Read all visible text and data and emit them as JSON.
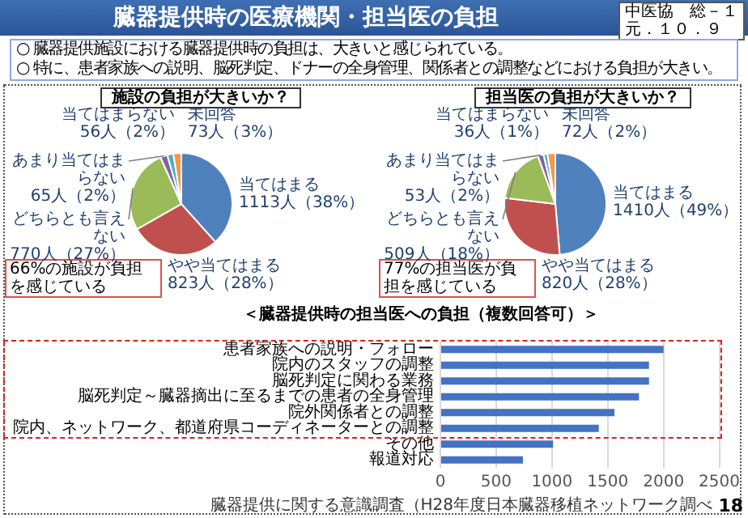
{
  "chart_data": [
    {
      "type": "other",
      "title": "臓器提供時の医療機関・担当医の負担",
      "annotations": [
        "中医協　総－１",
        "元．１０．９",
        "○ 臓器提供施設における臓器提供時の負担は、大きいと感じられている。",
        "○ 特に、患者家族への説明、脳死判定、ドナーの全身管理、関係者との調整などにおける負担が大きい。"
      ]
    },
    {
      "type": "pie",
      "title": "施設の負担が大きいか？",
      "categories": [
        "当てはまる",
        "やや当てはまる",
        "どちらとも言えない",
        "あまり当てはまらない",
        "当てはまらない",
        "未回答"
      ],
      "values": [
        1113,
        823,
        770,
        65,
        56,
        73
      ],
      "colors": [
        "#4f81bd",
        "#c0504d",
        "#9bbb59",
        "#8064a2",
        "#4bacc6",
        "#f79646"
      ],
      "value_labels": [
        "1113人（38%）",
        "823人（28%）",
        "770人（27%）",
        "65人（2%）",
        "56人（2%）",
        "73人（3%）"
      ],
      "annotations": [
        "66%の施設が負担を感じている"
      ]
    },
    {
      "type": "pie",
      "title": "担当医の負担が大きいか？",
      "categories": [
        "当てはまる",
        "やや当てはまる",
        "どちらとも言えない",
        "あまり当てはまらない",
        "当てはまらない",
        "未回答"
      ],
      "values": [
        1410,
        820,
        509,
        53,
        36,
        72
      ],
      "colors": [
        "#4f81bd",
        "#c0504d",
        "#9bbb59",
        "#8064a2",
        "#4bacc6",
        "#f79646"
      ],
      "value_labels": [
        "1410人（49%）",
        "820人（28%）",
        "509人（18%）",
        "53人（2%）",
        "36人（1%）",
        "72人（2%）"
      ],
      "annotations": [
        "77%の担当医が負担を感じている"
      ]
    },
    {
      "type": "bar",
      "orientation": "horizontal",
      "title": "＜臓器提供時の担当医への負担（複数回答可）＞",
      "categories": [
        "患者家族への説明・フォロー",
        "院内のスタッフの調整",
        "脳死判定に関わる業務",
        "脳死判定～臓器摘出に至るまでの患者の全身管理",
        "院外関係者との調整",
        "院内、ネットワーク、都道府県コーディネーターとの調整",
        "その他",
        "報道対応"
      ],
      "values": [
        2000,
        1870,
        1870,
        1780,
        1560,
        1420,
        1010,
        740
      ],
      "color": "#4472c4",
      "xlim": [
        0,
        2500
      ],
      "xticks": [
        0,
        500,
        1000,
        1500,
        2000,
        2500
      ],
      "grid": "x",
      "annotations": [
        "臓器提供に関する意識調査（H28年度日本臓器移植ネットワーク調べ",
        "18"
      ]
    }
  ]
}
